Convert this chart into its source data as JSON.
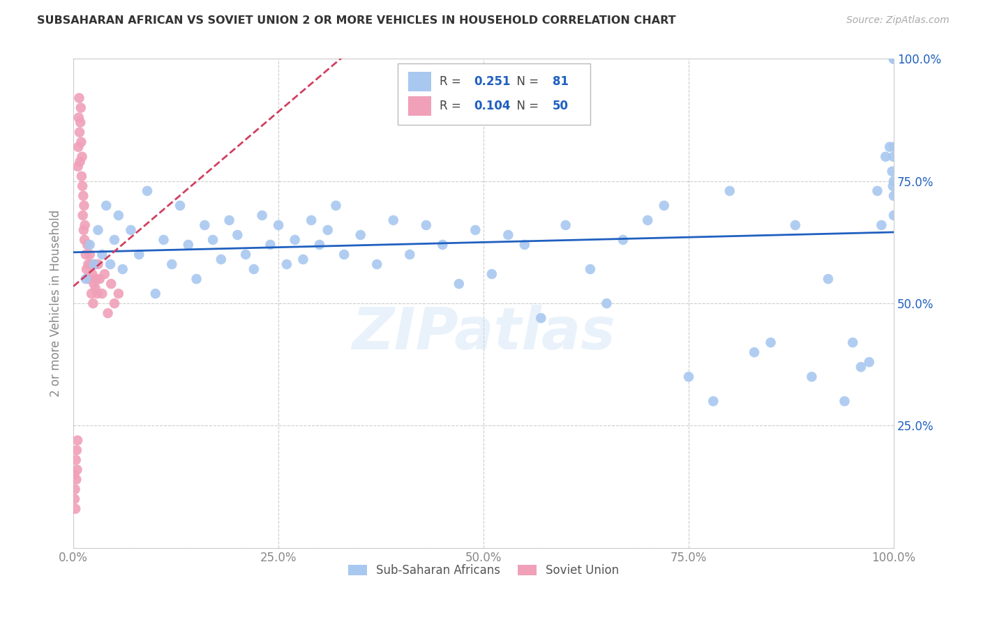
{
  "title": "SUBSAHARAN AFRICAN VS SOVIET UNION 2 OR MORE VEHICLES IN HOUSEHOLD CORRELATION CHART",
  "source": "Source: ZipAtlas.com",
  "ylabel": "2 or more Vehicles in Household",
  "blue_label": "Sub-Saharan Africans",
  "pink_label": "Soviet Union",
  "blue_R": 0.251,
  "blue_N": 81,
  "pink_R": 0.104,
  "pink_N": 50,
  "blue_color": "#a8c8f0",
  "pink_color": "#f0a0b8",
  "line_blue_color": "#2060c0",
  "line_pink_color": "#d04060",
  "line_pink_style": "--",
  "watermark": "ZIPatlas",
  "blue_x": [
    1.5,
    2.0,
    2.5,
    3.0,
    3.5,
    4.0,
    4.5,
    5.0,
    5.5,
    6.0,
    7.0,
    8.0,
    9.0,
    10.0,
    11.0,
    12.0,
    13.0,
    14.0,
    15.0,
    16.0,
    17.0,
    18.0,
    19.0,
    20.0,
    21.0,
    22.0,
    23.0,
    24.0,
    25.0,
    26.0,
    27.0,
    28.0,
    29.0,
    30.0,
    31.0,
    32.0,
    33.0,
    35.0,
    37.0,
    39.0,
    41.0,
    43.0,
    45.0,
    47.0,
    49.0,
    51.0,
    53.0,
    55.0,
    57.0,
    60.0,
    63.0,
    65.0,
    67.0,
    70.0,
    72.0,
    75.0,
    78.0,
    80.0,
    83.0,
    85.0,
    88.0,
    90.0,
    92.0,
    94.0,
    95.0,
    96.0,
    97.0,
    98.0,
    98.5,
    99.0,
    99.5,
    99.8,
    99.9,
    99.95,
    100.0,
    100.0,
    100.0,
    100.0,
    100.0,
    100.0,
    100.0
  ],
  "blue_y": [
    55.0,
    62.0,
    58.0,
    65.0,
    60.0,
    70.0,
    58.0,
    63.0,
    68.0,
    57.0,
    65.0,
    60.0,
    73.0,
    52.0,
    63.0,
    58.0,
    70.0,
    62.0,
    55.0,
    66.0,
    63.0,
    59.0,
    67.0,
    64.0,
    60.0,
    57.0,
    68.0,
    62.0,
    66.0,
    58.0,
    63.0,
    59.0,
    67.0,
    62.0,
    65.0,
    70.0,
    60.0,
    64.0,
    58.0,
    67.0,
    60.0,
    66.0,
    62.0,
    54.0,
    65.0,
    56.0,
    64.0,
    62.0,
    47.0,
    66.0,
    57.0,
    50.0,
    63.0,
    67.0,
    70.0,
    35.0,
    30.0,
    73.0,
    40.0,
    42.0,
    66.0,
    35.0,
    55.0,
    30.0,
    42.0,
    37.0,
    38.0,
    73.0,
    66.0,
    80.0,
    82.0,
    77.0,
    74.0,
    80.0,
    100.0,
    82.0,
    75.0,
    68.0,
    72.0,
    100.0,
    100.0
  ],
  "pink_x": [
    0.1,
    0.15,
    0.2,
    0.25,
    0.3,
    0.35,
    0.4,
    0.45,
    0.5,
    0.55,
    0.6,
    0.65,
    0.7,
    0.75,
    0.8,
    0.85,
    0.9,
    0.95,
    1.0,
    1.05,
    1.1,
    1.15,
    1.2,
    1.25,
    1.3,
    1.35,
    1.4,
    1.5,
    1.6,
    1.7,
    1.8,
    1.9,
    2.0,
    2.1,
    2.2,
    2.3,
    2.4,
    2.5,
    2.6,
    2.7,
    2.8,
    2.9,
    3.0,
    3.2,
    3.5,
    3.8,
    4.2,
    4.6,
    5.0,
    5.5
  ],
  "pink_y": [
    15.0,
    10.0,
    12.0,
    8.0,
    18.0,
    14.0,
    20.0,
    16.0,
    22.0,
    78.0,
    82.0,
    88.0,
    92.0,
    85.0,
    79.0,
    87.0,
    90.0,
    83.0,
    76.0,
    80.0,
    74.0,
    68.0,
    72.0,
    65.0,
    70.0,
    63.0,
    66.0,
    60.0,
    57.0,
    62.0,
    58.0,
    55.0,
    60.0,
    58.0,
    52.0,
    56.0,
    50.0,
    54.0,
    58.0,
    53.0,
    55.0,
    52.0,
    58.0,
    55.0,
    52.0,
    56.0,
    48.0,
    54.0,
    50.0,
    52.0
  ],
  "xlim": [
    0,
    100
  ],
  "ylim": [
    0,
    100
  ],
  "xticks": [
    0,
    25,
    50,
    75,
    100
  ],
  "yticks": [
    0,
    25,
    50,
    75,
    100
  ],
  "xticklabels": [
    "0.0%",
    "25.0%",
    "50.0%",
    "75.0%",
    "100.0%"
  ],
  "right_yticklabels": [
    "",
    "25.0%",
    "50.0%",
    "75.0%",
    "100.0%"
  ],
  "background_color": "#ffffff",
  "grid_color": "#cccccc",
  "tick_color": "#888888",
  "right_tick_color": "#2060c0"
}
